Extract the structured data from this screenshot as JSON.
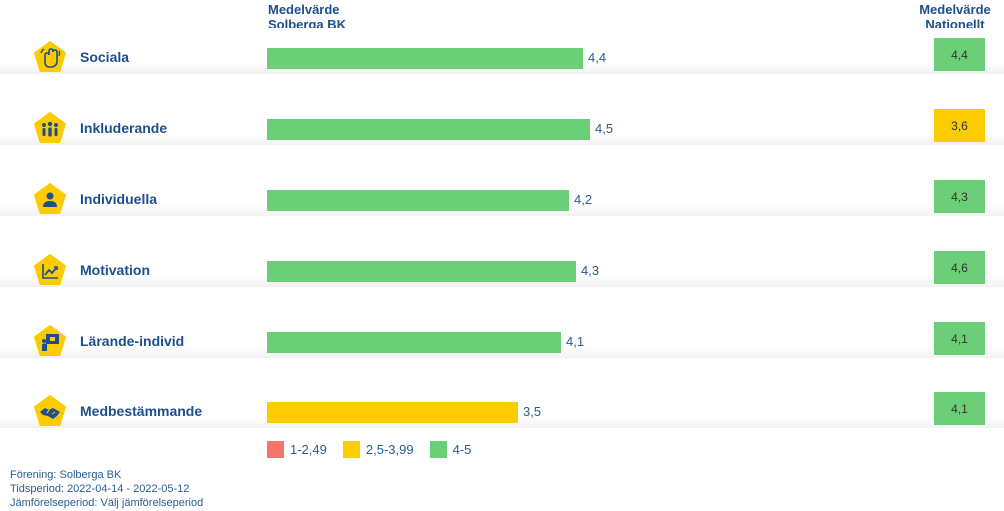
{
  "header": {
    "local_line1": "Medelvärde",
    "local_line2": "Solberga BK",
    "national_line1": "Medelvärde",
    "national_line2": "Nationellt"
  },
  "colors": {
    "green": "#6bcf77",
    "yellow": "#fccb00",
    "red": "#f4756a",
    "icon_bg": "#fccb00",
    "icon_fg": "#1d4f8c"
  },
  "chart_data": {
    "type": "bar",
    "orientation": "horizontal",
    "categories": [
      "Sociala",
      "Inkluderande",
      "Individuella",
      "Motivation",
      "Lärande-individ",
      "Medbestämmande"
    ],
    "series": [
      {
        "name": "Medelvärde Solberga BK",
        "values": [
          4.4,
          4.5,
          4.2,
          4.3,
          4.1,
          3.5
        ]
      },
      {
        "name": "Medelvärde Nationellt",
        "values": [
          4.4,
          3.6,
          4.3,
          4.6,
          4.1,
          4.1
        ]
      }
    ],
    "value_labels": [
      "4,4",
      "4,5",
      "4,2",
      "4,3",
      "4,1",
      "3,5"
    ],
    "national_labels": [
      "4,4",
      "3,6",
      "4,3",
      "4,6",
      "4,1",
      "4,1"
    ],
    "icons": [
      "hand-wave-icon",
      "group-people-icon",
      "person-icon",
      "trend-chart-icon",
      "learning-board-icon",
      "handshake-icon"
    ],
    "xlim": [
      0,
      5
    ],
    "legend": [
      {
        "label": "1-2,49",
        "color": "#f4756a",
        "min": 1,
        "max": 2.49
      },
      {
        "label": "2,5-3,99",
        "color": "#fccb00",
        "min": 2.5,
        "max": 3.99
      },
      {
        "label": "4-5",
        "color": "#6bcf77",
        "min": 4,
        "max": 5
      }
    ],
    "legend_position": "bottom",
    "grid": false
  },
  "footer": {
    "forening": "Förening: Solberga BK",
    "tidsperiod": "Tidsperiod: 2022-04-14 - 2022-05-12",
    "jamforelse": "Jämförelseperiod: Välj jämförelseperiod"
  }
}
